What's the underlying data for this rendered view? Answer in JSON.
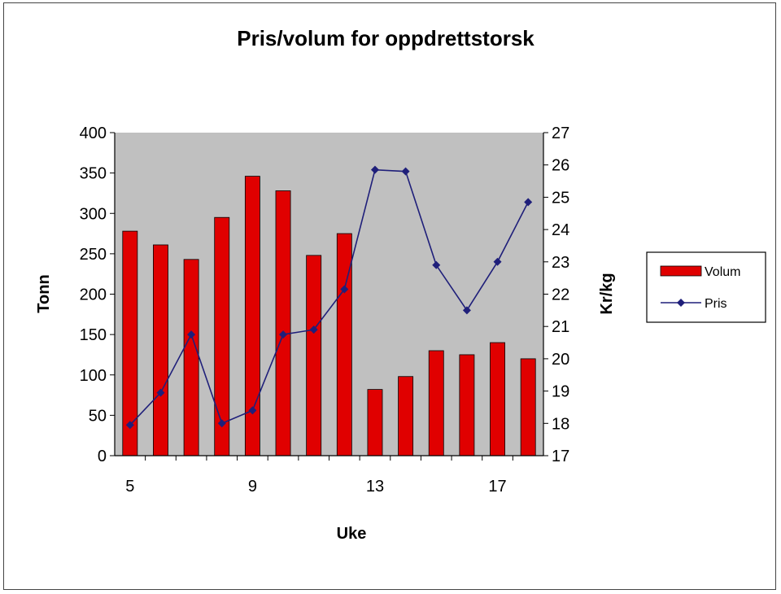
{
  "chart_data": {
    "type": "bar",
    "title": "Pris/volum for oppdrettstorsk",
    "xlabel": "Uke",
    "ylabel": "Tonn",
    "y2label": "Kr/kg",
    "x": [
      5,
      6,
      7,
      8,
      9,
      10,
      11,
      12,
      13,
      14,
      15,
      16,
      17,
      18
    ],
    "x_tick_labels": [
      "5",
      "9",
      "13",
      "17"
    ],
    "ylim": [
      0,
      400
    ],
    "y_ticks": [
      0,
      50,
      100,
      150,
      200,
      250,
      300,
      350,
      400
    ],
    "y2lim": [
      17,
      27
    ],
    "y2_ticks": [
      17,
      18,
      19,
      20,
      21,
      22,
      23,
      24,
      25,
      26,
      27
    ],
    "series": [
      {
        "name": "Volum",
        "type": "bar",
        "axis": "left",
        "color": "#e00000",
        "values": [
          278,
          261,
          243,
          295,
          346,
          328,
          248,
          275,
          82,
          98,
          130,
          125,
          140,
          120
        ]
      },
      {
        "name": "Pris",
        "type": "line",
        "axis": "right",
        "color": "#1f1f7a",
        "values": [
          17.95,
          18.95,
          20.75,
          18.0,
          18.4,
          20.75,
          20.9,
          22.15,
          25.85,
          25.8,
          22.9,
          21.5,
          23.0,
          24.85
        ]
      }
    ],
    "plot_background": "#c0c0c0",
    "grid": false,
    "legend_position": "right"
  }
}
